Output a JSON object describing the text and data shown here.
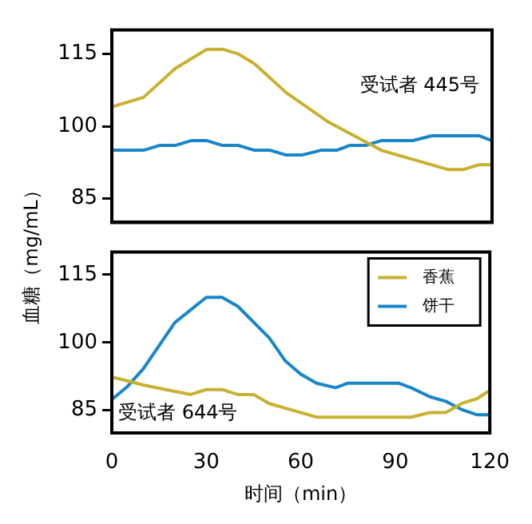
{
  "chart_data": [
    {
      "type": "line",
      "ylabel": "血糖（mg/mL）",
      "annotations": [
        "受试者 445号"
      ],
      "xlim": [
        0,
        120
      ],
      "ylim": [
        80,
        120
      ],
      "yticks": [
        85,
        100,
        115
      ],
      "tick_labels": "y",
      "series": [
        {
          "color": "#c8b030",
          "x": [
            0,
            10,
            20,
            30,
            35,
            40,
            45,
            55,
            68,
            85,
            106,
            111,
            116,
            120
          ],
          "values": [
            104,
            106,
            112,
            116,
            116,
            115,
            113,
            107,
            101,
            95,
            91,
            91,
            92,
            92
          ]
        },
        {
          "color": "#1a86c8",
          "x": [
            0,
            10,
            15,
            20,
            25,
            30,
            35,
            40,
            45,
            50,
            55,
            60,
            66,
            71,
            75,
            80,
            85,
            95,
            101,
            116,
            120
          ],
          "values": [
            95,
            95,
            96,
            96,
            97,
            97,
            96,
            96,
            95,
            95,
            94,
            94,
            95,
            95,
            96,
            96,
            97,
            97,
            98,
            98,
            97
          ]
        }
      ]
    },
    {
      "type": "line",
      "xlabel": "时间（min）",
      "annotations": [
        "受试者 644号"
      ],
      "xlim": [
        0,
        120
      ],
      "ylim": [
        80,
        120
      ],
      "xticks": [
        0,
        30,
        60,
        90,
        120
      ],
      "yticks": [
        85,
        100,
        115
      ],
      "legend": "top right",
      "series": [
        {
          "name": "香蕉",
          "color": "#c8b030",
          "x": [
            0,
            10,
            20,
            25,
            30,
            35,
            40,
            45,
            50,
            55,
            65,
            95,
            101,
            106,
            111,
            116,
            120
          ],
          "values": [
            92.4,
            90.6,
            89.2,
            88.5,
            89.6,
            89.6,
            88.5,
            88.5,
            86.5,
            85.5,
            83.5,
            83.5,
            84.5,
            84.5,
            86.5,
            87.6,
            89.4
          ]
        },
        {
          "name": "饼干",
          "color": "#1a86c8",
          "x": [
            0,
            5,
            10,
            20,
            30,
            35,
            40,
            50,
            55,
            60,
            65,
            71,
            75,
            91,
            95,
            101,
            106,
            111,
            116,
            120
          ],
          "values": [
            87.4,
            90.3,
            94.2,
            104.4,
            110,
            110,
            108,
            101,
            96,
            93,
            91,
            90,
            91,
            91,
            90,
            88,
            87,
            85.2,
            84,
            84
          ]
        }
      ]
    }
  ]
}
